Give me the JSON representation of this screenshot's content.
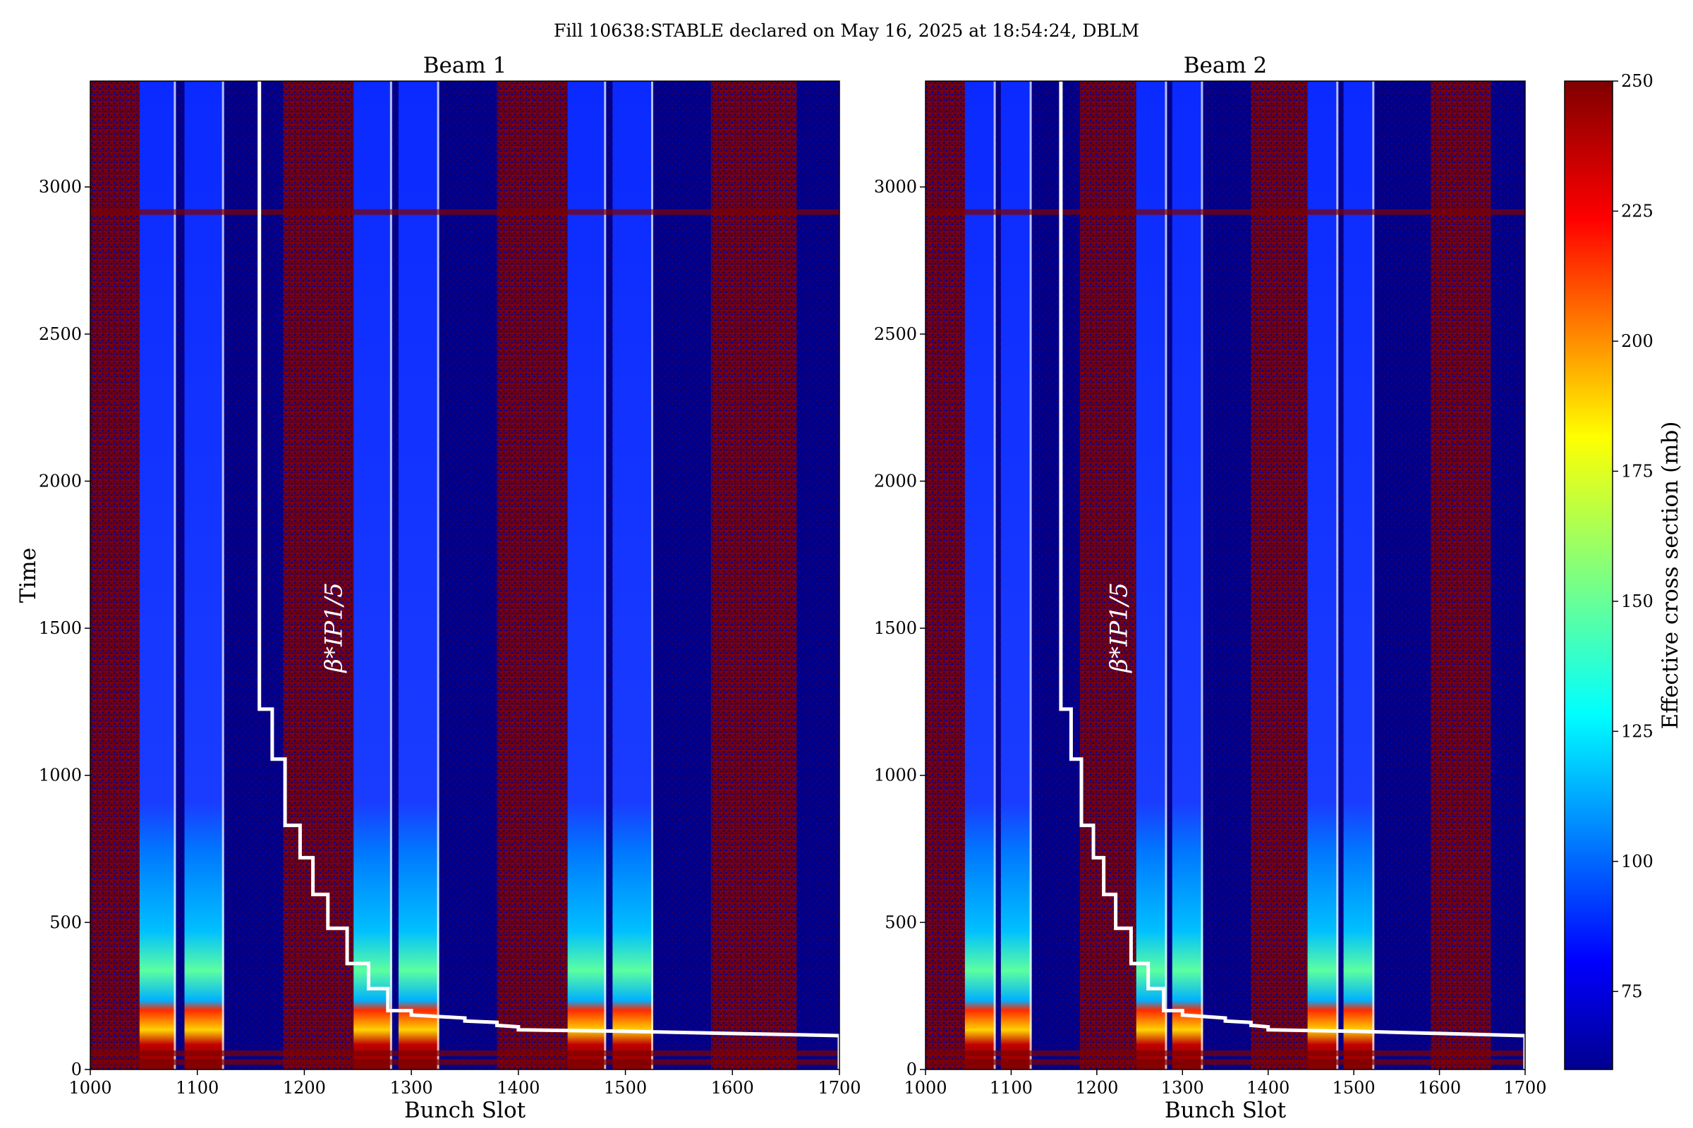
{
  "suptitle": "Fill 10638:STABLE declared on May 16, 2025 at 18:54:24, DBLM",
  "colors": {
    "background": "#00008b",
    "noise": "#7f0000",
    "train_low": "#0a2aff",
    "train_mid": "#00c8ff",
    "train_high": "#ffe400",
    "step_line": "#ffffff"
  },
  "chart_data": [
    {
      "type": "heatmap",
      "title": "Beam 1",
      "xlabel": "Bunch Slot",
      "ylabel": "Time",
      "xlim": [
        1000,
        1700
      ],
      "ylim": [
        0,
        3360
      ],
      "xticks": [
        1000,
        1100,
        1200,
        1300,
        1400,
        1500,
        1600,
        1700
      ],
      "yticks": [
        0,
        500,
        1000,
        1500,
        2000,
        2500,
        3000
      ],
      "trains": [
        [
          1046,
          1080
        ],
        [
          1088,
          1125
        ],
        [
          1246,
          1282
        ],
        [
          1288,
          1326
        ],
        [
          1446,
          1482
        ],
        [
          1488,
          1526
        ]
      ],
      "noise_bands": [
        [
          1000,
          1046
        ],
        [
          1180,
          1246
        ],
        [
          1380,
          1446
        ],
        [
          1580,
          1660
        ]
      ],
      "annotation": {
        "text": "β*IP1/5",
        "x": 1235,
        "y": 1350
      },
      "step_line": {
        "x": [
          1158,
          1158,
          1170,
          1170,
          1182,
          1182,
          1196,
          1196,
          1208,
          1208,
          1222,
          1222,
          1240,
          1240,
          1260,
          1260,
          1278,
          1278,
          1300,
          1300,
          1350,
          1350,
          1380,
          1380,
          1400,
          1400,
          1500,
          1700,
          1700
        ],
        "y": [
          3360,
          1225,
          1225,
          1055,
          1055,
          830,
          830,
          720,
          720,
          595,
          595,
          480,
          480,
          360,
          360,
          275,
          275,
          200,
          200,
          185,
          175,
          165,
          160,
          150,
          145,
          135,
          130,
          115,
          0
        ]
      }
    },
    {
      "type": "heatmap",
      "title": "Beam 2",
      "xlabel": "Bunch Slot",
      "ylabel": "",
      "xlim": [
        1000,
        1700
      ],
      "ylim": [
        0,
        3360
      ],
      "xticks": [
        1000,
        1100,
        1200,
        1300,
        1400,
        1500,
        1600,
        1700
      ],
      "yticks": [
        0,
        500,
        1000,
        1500,
        2000,
        2500,
        3000
      ],
      "trains": [
        [
          1046,
          1082
        ],
        [
          1088,
          1124
        ],
        [
          1246,
          1282
        ],
        [
          1288,
          1324
        ],
        [
          1446,
          1482
        ],
        [
          1488,
          1524
        ]
      ],
      "noise_bands": [
        [
          1000,
          1046
        ],
        [
          1180,
          1246
        ],
        [
          1380,
          1446
        ],
        [
          1590,
          1660
        ]
      ],
      "annotation": {
        "text": "β*IP1/5",
        "x": 1235,
        "y": 1350
      },
      "step_line": {
        "x": [
          1158,
          1158,
          1170,
          1170,
          1182,
          1182,
          1196,
          1196,
          1208,
          1208,
          1222,
          1222,
          1240,
          1240,
          1260,
          1260,
          1278,
          1278,
          1300,
          1300,
          1350,
          1350,
          1380,
          1380,
          1400,
          1400,
          1500,
          1700,
          1700
        ],
        "y": [
          3360,
          1225,
          1225,
          1055,
          1055,
          830,
          830,
          720,
          720,
          595,
          595,
          480,
          480,
          360,
          360,
          275,
          275,
          200,
          200,
          185,
          175,
          165,
          160,
          150,
          145,
          135,
          130,
          115,
          0
        ]
      }
    }
  ],
  "colorbar": {
    "label": "Effective cross section (mb)",
    "range": [
      60,
      250
    ],
    "ticks": [
      75,
      100,
      125,
      150,
      175,
      200,
      225,
      250
    ],
    "colormap": "jet"
  }
}
